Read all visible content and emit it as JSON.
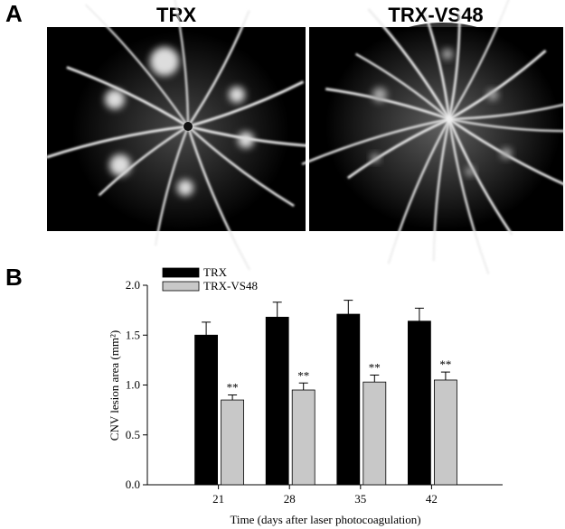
{
  "panel_a": {
    "label": "A",
    "images": [
      {
        "title": "TRX"
      },
      {
        "title": "TRX-VS48"
      }
    ]
  },
  "panel_b": {
    "label": "B"
  },
  "chart_data": {
    "type": "bar",
    "y_label": "CNV lesion area (mm²)",
    "x_label": "Time (days after laser photocoagulation)",
    "categories": [
      "21",
      "28",
      "35",
      "42"
    ],
    "series": [
      {
        "name": "TRX",
        "color": "#000000",
        "values": [
          1.5,
          1.68,
          1.71,
          1.64
        ],
        "errors": [
          0.13,
          0.15,
          0.14,
          0.13
        ]
      },
      {
        "name": "TRX-VS48",
        "color": "#c8c8c8",
        "values": [
          0.85,
          0.95,
          1.03,
          1.05
        ],
        "errors": [
          0.05,
          0.07,
          0.07,
          0.08
        ],
        "significance": [
          "**",
          "**",
          "**",
          "**"
        ]
      }
    ],
    "ylim": [
      0,
      2
    ],
    "yticks": [
      {
        "value": 0,
        "label": "0.0"
      },
      {
        "value": 0.5,
        "label": "0.5"
      },
      {
        "value": 1,
        "label": "1.0"
      },
      {
        "value": 1.5,
        "label": "1.5"
      },
      {
        "value": 2,
        "label": "2.0"
      }
    ]
  }
}
